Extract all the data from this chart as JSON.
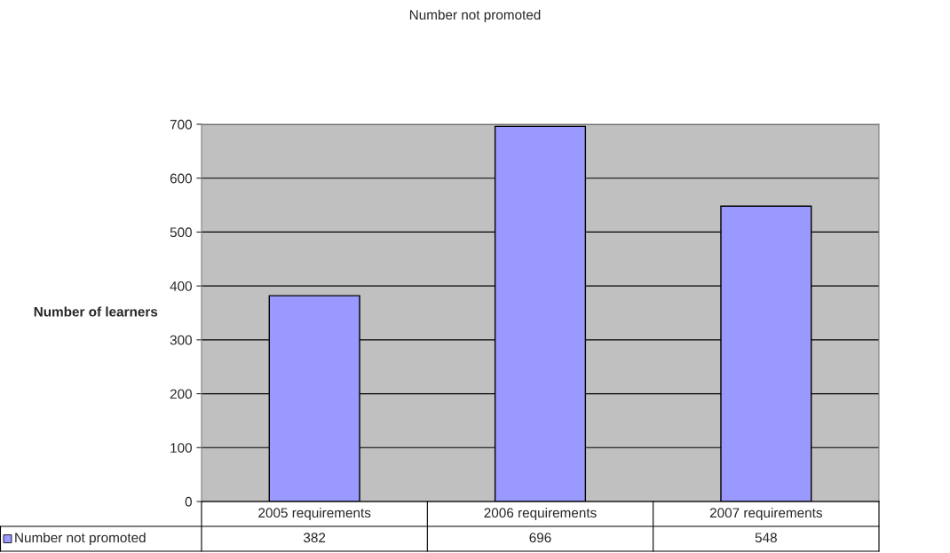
{
  "chart_data": {
    "type": "bar",
    "title": "Number not promoted",
    "ylabel": "Number of learners",
    "categories": [
      "2005 requirements",
      "2006 requirements",
      "2007 requirements"
    ],
    "series": [
      {
        "name": "Number not promoted",
        "color": "#9999ff",
        "values": [
          382,
          696,
          548
        ]
      }
    ],
    "ylim": [
      0,
      700
    ],
    "yticks": [
      0,
      100,
      200,
      300,
      400,
      500,
      600,
      700
    ],
    "grid": "y",
    "data_labels": true,
    "legend": "bottom left"
  }
}
